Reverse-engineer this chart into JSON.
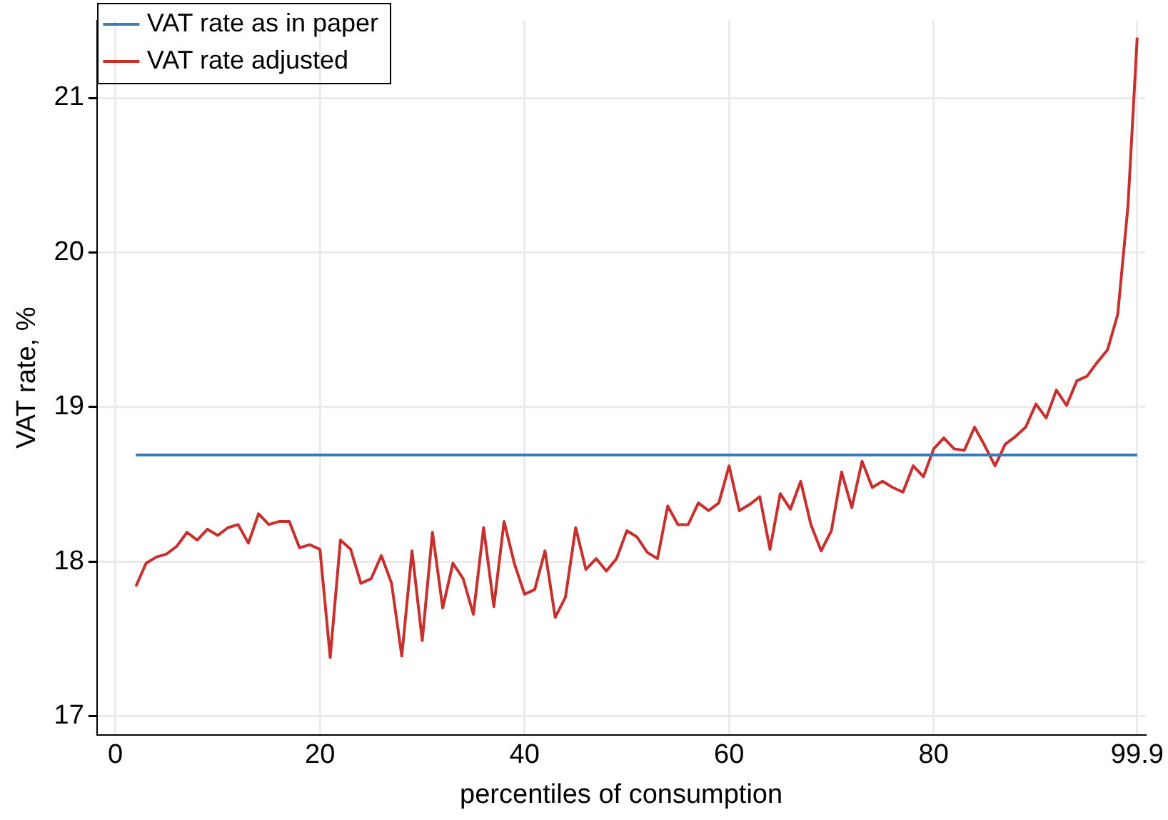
{
  "chart_data": {
    "type": "line",
    "xlabel": "percentiles of consumption",
    "ylabel": "VAT rate, %",
    "xlim": [
      -1.8,
      100.7
    ],
    "xticks": [
      0,
      20,
      40,
      60,
      80,
      99.9
    ],
    "ylim": [
      16.88,
      21.5
    ],
    "yticks": [
      17,
      18,
      19,
      20,
      21
    ],
    "grid": true,
    "legend": "top left",
    "marker": "none",
    "line_style": "solid",
    "series": [
      {
        "name": "VAT rate as in paper",
        "color": "#3a7ab8",
        "x": [
          2,
          99.9
        ],
        "values": [
          18.69,
          18.69
        ]
      },
      {
        "name": "VAT rate adjusted",
        "color": "#c8302e",
        "x": [
          2,
          3,
          4,
          5,
          6,
          7,
          8,
          9,
          10,
          11,
          12,
          13,
          14,
          15,
          16,
          17,
          18,
          19,
          20,
          21,
          22,
          23,
          24,
          25,
          26,
          27,
          28,
          29,
          30,
          31,
          32,
          33,
          34,
          35,
          36,
          37,
          38,
          39,
          40,
          41,
          42,
          43,
          44,
          45,
          46,
          47,
          48,
          49,
          50,
          51,
          52,
          53,
          54,
          55,
          56,
          57,
          58,
          59,
          60,
          61,
          62,
          63,
          64,
          65,
          66,
          67,
          68,
          69,
          70,
          71,
          72,
          73,
          74,
          75,
          76,
          77,
          78,
          79,
          80,
          81,
          82,
          83,
          84,
          85,
          86,
          87,
          88,
          89,
          90,
          91,
          92,
          93,
          94,
          95,
          96,
          97,
          98,
          99,
          99.9
        ],
        "values": [
          17.84,
          17.99,
          18.03,
          18.05,
          18.1,
          18.19,
          18.14,
          18.21,
          18.17,
          18.22,
          18.24,
          18.12,
          18.31,
          18.24,
          18.26,
          18.26,
          18.09,
          18.11,
          18.08,
          17.38,
          18.14,
          18.08,
          17.86,
          17.89,
          18.04,
          17.86,
          17.39,
          18.07,
          17.49,
          18.19,
          17.7,
          17.99,
          17.89,
          17.66,
          18.22,
          17.71,
          18.26,
          17.99,
          17.79,
          17.82,
          18.07,
          17.64,
          17.77,
          18.22,
          17.95,
          18.02,
          17.94,
          18.02,
          18.2,
          18.16,
          18.06,
          18.02,
          18.36,
          18.24,
          18.24,
          18.38,
          18.33,
          18.38,
          18.62,
          18.33,
          18.37,
          18.42,
          18.08,
          18.44,
          18.34,
          18.52,
          18.24,
          18.07,
          18.2,
          18.58,
          18.35,
          18.65,
          18.48,
          18.52,
          18.48,
          18.45,
          18.62,
          18.55,
          18.73,
          18.8,
          18.73,
          18.72,
          18.87,
          18.75,
          18.62,
          18.76,
          18.81,
          18.87,
          19.02,
          18.93,
          19.11,
          19.01,
          19.17,
          19.2,
          19.29,
          19.37,
          19.6,
          20.3,
          21.39
        ]
      }
    ]
  }
}
